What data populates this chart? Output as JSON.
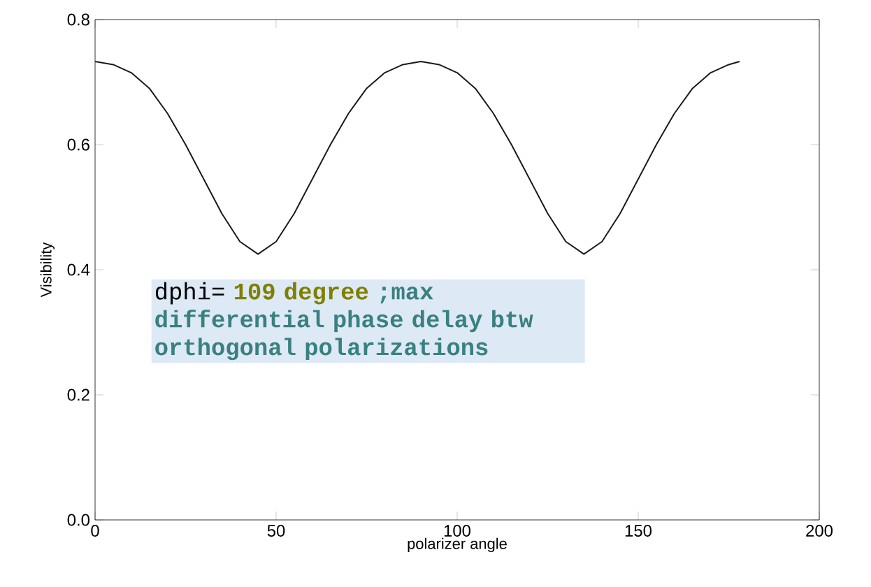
{
  "chart_data": {
    "type": "line",
    "xlabel": "polarizer angle",
    "ylabel": "Visibility",
    "x": [
      0,
      5,
      10,
      15,
      20,
      25,
      30,
      35,
      40,
      45,
      50,
      55,
      60,
      65,
      70,
      75,
      80,
      85,
      90,
      95,
      100,
      105,
      110,
      115,
      120,
      125,
      130,
      135,
      140,
      145,
      150,
      155,
      160,
      165,
      170,
      175,
      178
    ],
    "series": [
      {
        "color": "#1a1a1a",
        "values": [
          0.733,
          0.728,
          0.715,
          0.69,
          0.65,
          0.6,
          0.545,
          0.49,
          0.445,
          0.425,
          0.445,
          0.49,
          0.545,
          0.6,
          0.65,
          0.69,
          0.715,
          0.728,
          0.733,
          0.728,
          0.715,
          0.69,
          0.65,
          0.6,
          0.545,
          0.49,
          0.445,
          0.425,
          0.445,
          0.49,
          0.545,
          0.6,
          0.65,
          0.69,
          0.715,
          0.728,
          0.733
        ]
      }
    ],
    "xlim": [
      0,
      200
    ],
    "xticks": [
      0,
      50,
      100,
      150,
      200
    ],
    "ylim": [
      0,
      0.8
    ],
    "yticks": [
      {
        "value": 0,
        "label": "0.0"
      },
      {
        "value": 0.2,
        "label": "0.2"
      },
      {
        "value": 0.4,
        "label": "0.4"
      },
      {
        "value": 0.6,
        "label": "0.6"
      },
      {
        "value": 0.8,
        "label": "0.8"
      }
    ],
    "annotations": [
      "dphi=",
      "109 degree",
      ";max differential phase delay btw orthogonal polarizations"
    ],
    "marker": "none",
    "line_style": "solid"
  }
}
